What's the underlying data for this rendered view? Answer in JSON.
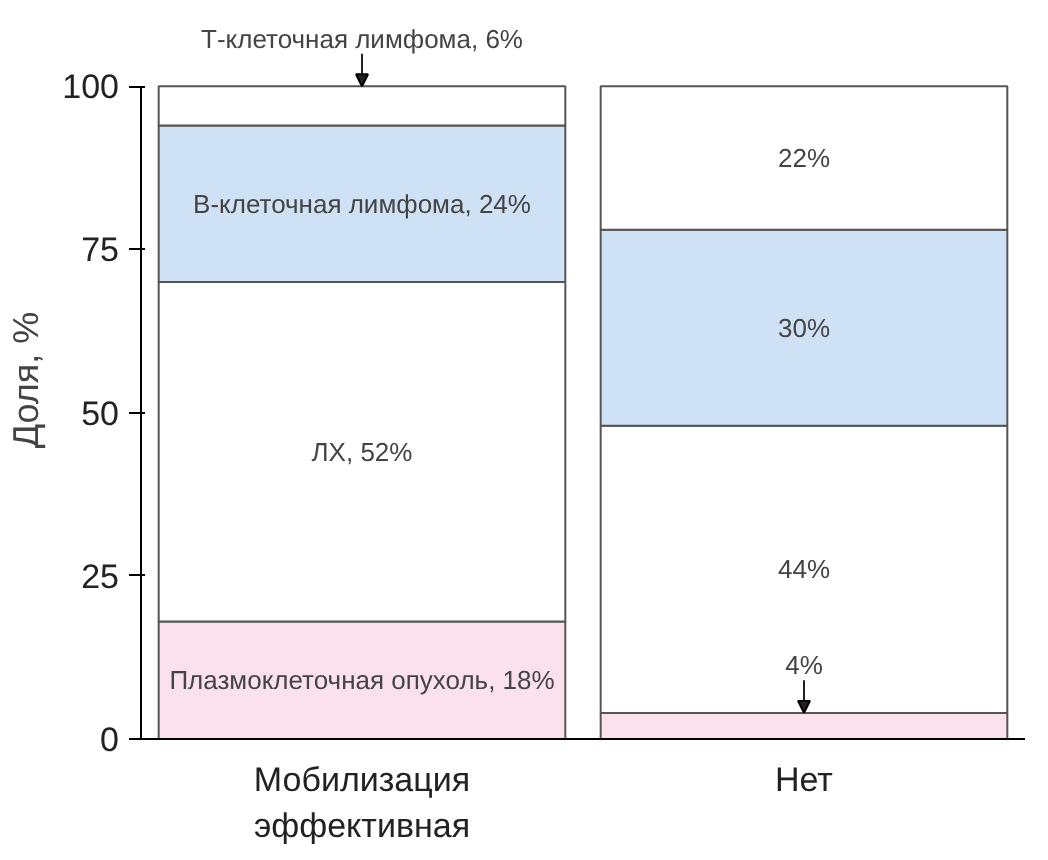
{
  "chart_data": {
    "type": "bar",
    "stacked": true,
    "ylabel": "Доля, %",
    "categories": [
      "Мобилизация эффективная",
      "Нет"
    ],
    "ylim": [
      0,
      100
    ],
    "yticks": [
      0,
      25,
      50,
      75,
      100
    ],
    "grid": false,
    "series": [
      {
        "color": "#fbe1ec",
        "values": [
          18,
          4
        ],
        "value_labels": [
          "Плазмоклеточная опухоль, 18%",
          "4%"
        ]
      },
      {
        "color": "#ffffff",
        "values": [
          52,
          44
        ],
        "value_labels": [
          "ЛХ, 52%",
          "44%"
        ]
      },
      {
        "color": "#cfe2f5",
        "values": [
          24,
          30
        ],
        "value_labels": [
          "В-клеточная лимфома, 24%",
          "30%"
        ]
      },
      {
        "color": "#ffffff",
        "values": [
          6,
          22
        ],
        "value_labels": [
          "Т-клеточная лимфома, 6%",
          "22%"
        ]
      }
    ]
  }
}
